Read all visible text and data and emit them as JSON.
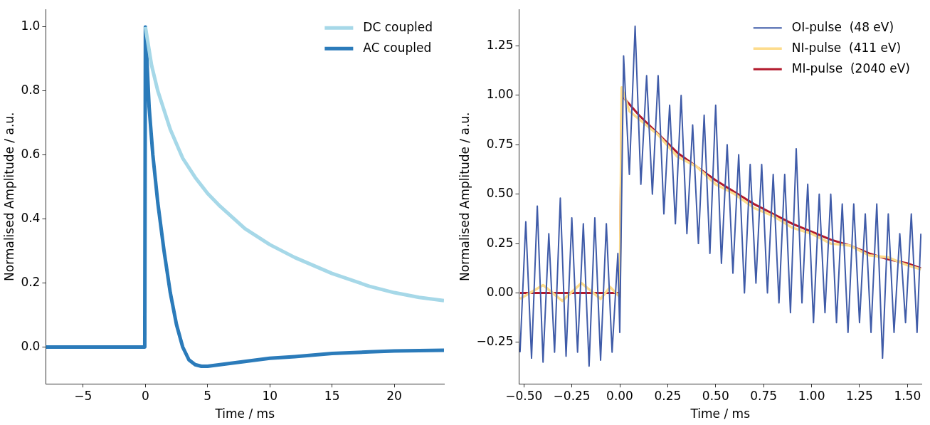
{
  "chart_data": [
    {
      "type": "line",
      "xlabel": "Time / ms",
      "ylabel": "Normalised Amplitude / a.u.",
      "xlim": [
        -8,
        24
      ],
      "ylim": [
        -0.115,
        1.055
      ],
      "xticks": [
        {
          "value": -5,
          "label": "−5"
        },
        0,
        5,
        10,
        15,
        20
      ],
      "yticks": [
        {
          "value": 0,
          "label": "0.0"
        },
        0.2,
        0.4,
        0.6,
        0.8,
        {
          "value": 1,
          "label": "1.0"
        }
      ],
      "grid": false,
      "legend": "top right",
      "marker": "none",
      "line_style": "solid",
      "series": [
        {
          "name": "DC coupled",
          "color": "#a6d8e8",
          "x": [
            0,
            0.5,
            1,
            2,
            3,
            4,
            5,
            6,
            8,
            10,
            12,
            15,
            18,
            20,
            22,
            24
          ],
          "values": [
            1.0,
            0.88,
            0.8,
            0.68,
            0.59,
            0.53,
            0.48,
            0.44,
            0.37,
            0.32,
            0.28,
            0.23,
            0.19,
            0.17,
            0.155,
            0.145
          ]
        },
        {
          "name": "AC coupled",
          "color": "#2b7bba",
          "x": [
            -8,
            -4,
            -0.05,
            0,
            0.3,
            0.6,
            1,
            1.5,
            2,
            2.5,
            3,
            3.5,
            4,
            4.5,
            5,
            6,
            8,
            10,
            12,
            15,
            18,
            20,
            24
          ],
          "values": [
            0,
            0,
            0,
            1.0,
            0.75,
            0.6,
            0.45,
            0.3,
            0.17,
            0.07,
            0.0,
            -0.04,
            -0.055,
            -0.06,
            -0.06,
            -0.055,
            -0.045,
            -0.035,
            -0.03,
            -0.02,
            -0.015,
            -0.012,
            -0.01
          ]
        }
      ]
    },
    {
      "type": "line",
      "xlabel": "Time / ms",
      "ylabel": "Normalised Amplitude / a.u.",
      "xlim": [
        -0.525,
        1.573
      ],
      "ylim": [
        -0.46,
        1.435
      ],
      "xticks": [
        {
          "value": -0.5,
          "label": "−0.50"
        },
        {
          "value": -0.25,
          "label": "−0.25"
        },
        {
          "value": 0,
          "label": "0.00"
        },
        0.25,
        {
          "value": 0.5,
          "label": "0.50"
        },
        0.75,
        {
          "value": 1,
          "label": "1.00"
        },
        1.25,
        {
          "value": 1.5,
          "label": "1.50"
        }
      ],
      "yticks": [
        {
          "value": -0.25,
          "label": "−0.25"
        },
        {
          "value": 0,
          "label": "0.00"
        },
        0.25,
        {
          "value": 0.5,
          "label": "0.50"
        },
        0.75,
        {
          "value": 1,
          "label": "1.00"
        },
        1.25
      ],
      "grid": false,
      "legend": "top right",
      "marker": "none",
      "line_style": "solid",
      "series": [
        {
          "name": "OI-pulse  (48 eV)",
          "color": "#3f5ba8",
          "x": [
            -0.52,
            -0.49,
            -0.46,
            -0.43,
            -0.4,
            -0.37,
            -0.34,
            -0.31,
            -0.28,
            -0.25,
            -0.22,
            -0.19,
            -0.16,
            -0.13,
            -0.1,
            -0.07,
            -0.04,
            -0.01,
            0.0,
            0.02,
            0.05,
            0.08,
            0.11,
            0.14,
            0.17,
            0.2,
            0.23,
            0.26,
            0.29,
            0.32,
            0.35,
            0.38,
            0.41,
            0.44,
            0.47,
            0.5,
            0.53,
            0.56,
            0.59,
            0.62,
            0.65,
            0.68,
            0.71,
            0.74,
            0.77,
            0.8,
            0.83,
            0.86,
            0.89,
            0.92,
            0.95,
            0.98,
            1.01,
            1.04,
            1.07,
            1.1,
            1.13,
            1.16,
            1.19,
            1.22,
            1.25,
            1.28,
            1.31,
            1.34,
            1.37,
            1.4,
            1.43,
            1.46,
            1.49,
            1.52,
            1.55,
            1.57
          ],
          "values": [
            -0.3,
            0.36,
            -0.33,
            0.44,
            -0.35,
            0.3,
            -0.3,
            0.48,
            -0.32,
            0.38,
            -0.3,
            0.35,
            -0.37,
            0.38,
            -0.34,
            0.35,
            -0.3,
            0.2,
            -0.2,
            1.2,
            0.6,
            1.35,
            0.55,
            1.1,
            0.5,
            1.1,
            0.4,
            0.95,
            0.35,
            1.0,
            0.3,
            0.85,
            0.25,
            0.9,
            0.2,
            0.95,
            0.15,
            0.75,
            0.1,
            0.7,
            0.0,
            0.65,
            0.05,
            0.65,
            0.0,
            0.6,
            -0.05,
            0.6,
            -0.1,
            0.73,
            -0.05,
            0.55,
            -0.15,
            0.5,
            -0.1,
            0.5,
            -0.15,
            0.45,
            -0.2,
            0.45,
            -0.15,
            0.4,
            -0.2,
            0.45,
            -0.33,
            0.4,
            -0.2,
            0.3,
            -0.15,
            0.4,
            -0.2,
            0.3
          ]
        },
        {
          "name": "NI-pulse  (411 eV)",
          "color": "#fddc8c",
          "x": [
            -0.52,
            -0.4,
            -0.3,
            -0.2,
            -0.1,
            -0.05,
            0,
            0.01,
            0.05,
            0.1,
            0.2,
            0.3,
            0.4,
            0.5,
            0.6,
            0.7,
            0.8,
            0.9,
            1.0,
            1.1,
            1.2,
            1.3,
            1.4,
            1.5,
            1.57
          ],
          "values": [
            -0.03,
            0.04,
            -0.04,
            0.05,
            -0.03,
            0.03,
            -0.02,
            1.04,
            0.92,
            0.88,
            0.8,
            0.69,
            0.64,
            0.55,
            0.5,
            0.43,
            0.39,
            0.33,
            0.3,
            0.25,
            0.24,
            0.19,
            0.18,
            0.14,
            0.12
          ]
        },
        {
          "name": "MI-pulse  (2040 eV)",
          "color": "#b2182b",
          "x": [
            -0.52,
            -0.25,
            0,
            0.01,
            0.1,
            0.3,
            0.4,
            0.5,
            0.6,
            0.7,
            0.8,
            0.9,
            1.0,
            1.1,
            1.2,
            1.3,
            1.4,
            1.5,
            1.57
          ],
          "values": [
            0,
            0,
            0,
            1.0,
            0.9,
            0.71,
            0.64,
            0.57,
            0.51,
            0.45,
            0.4,
            0.35,
            0.31,
            0.27,
            0.24,
            0.2,
            0.17,
            0.15,
            0.125
          ]
        }
      ]
    }
  ]
}
